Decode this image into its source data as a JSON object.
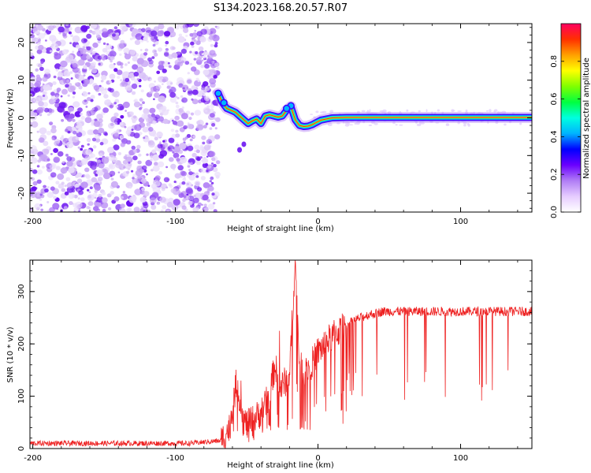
{
  "figure_title": "S134.2023.168.20.57.R07",
  "chart_data": [
    {
      "type": "heatmap",
      "xlabel": "Height of straight line (km)",
      "ylabel": "Frequency (Hz)",
      "xlim": [
        -202,
        150
      ],
      "ylim": [
        -25,
        25
      ],
      "x_ticks": [
        -200,
        -100,
        0,
        100
      ],
      "y_ticks": [
        -20,
        -10,
        0,
        10,
        20
      ],
      "colorbar": {
        "label": "Normalized spectral amplitude",
        "range": [
          0,
          1
        ],
        "ticks": [
          0.0,
          0.2,
          0.4,
          0.6,
          0.8
        ],
        "colors": [
          "#ffffff",
          "#e6ccff",
          "#b07cf5",
          "#6a00ff",
          "#0000ff",
          "#00b4ff",
          "#00ffe0",
          "#00ff40",
          "#80ff00",
          "#ffff00",
          "#ffa000",
          "#ff3000",
          "#ff0060"
        ]
      },
      "noise_region": {
        "x_from": -202,
        "x_to": -70,
        "freq_from": -25,
        "freq_to": 25
      },
      "ridge": [
        {
          "x": -70,
          "f": 6.5
        },
        {
          "x": -67,
          "f": 4
        },
        {
          "x": -64,
          "f": 2.5
        },
        {
          "x": -61,
          "f": 2
        },
        {
          "x": -58,
          "f": 1.5
        },
        {
          "x": -55,
          "f": 0.5
        },
        {
          "x": -52,
          "f": -0.5
        },
        {
          "x": -49,
          "f": -1.5
        },
        {
          "x": -46,
          "f": -0.8
        },
        {
          "x": -43,
          "f": -0.3
        },
        {
          "x": -40,
          "f": -1.5
        },
        {
          "x": -37,
          "f": 0.5
        },
        {
          "x": -34,
          "f": 0.8
        },
        {
          "x": -31,
          "f": 0.5
        },
        {
          "x": -28,
          "f": 0.2
        },
        {
          "x": -25,
          "f": 0.5
        },
        {
          "x": -22,
          "f": 2
        },
        {
          "x": -19,
          "f": 3
        },
        {
          "x": -16,
          "f": -0.5
        },
        {
          "x": -13,
          "f": -2
        },
        {
          "x": -10,
          "f": -2.3
        },
        {
          "x": -7,
          "f": -2.2
        },
        {
          "x": -4,
          "f": -1.8
        },
        {
          "x": -1,
          "f": -1.2
        },
        {
          "x": 2,
          "f": -0.6
        },
        {
          "x": 6,
          "f": -0.3
        },
        {
          "x": 10,
          "f": 0
        },
        {
          "x": 20,
          "f": 0.1
        },
        {
          "x": 40,
          "f": 0.1
        },
        {
          "x": 70,
          "f": 0.1
        },
        {
          "x": 100,
          "f": 0.1
        },
        {
          "x": 130,
          "f": 0.1
        },
        {
          "x": 150,
          "f": 0.1
        }
      ]
    },
    {
      "type": "line",
      "xlabel": "Height of straight line (km)",
      "ylabel": "SNR (10 * v/v)",
      "xlim": [
        -202,
        150
      ],
      "ylim": [
        0,
        360
      ],
      "x_ticks": [
        -200,
        -100,
        0,
        100
      ],
      "y_ticks": [
        0,
        100,
        200,
        300
      ],
      "color": "#ee2222",
      "series": [
        {
          "x": [
            -202,
            -180,
            -150,
            -120,
            -90,
            -68,
            -62,
            -57,
            -53,
            -50,
            -45,
            -40,
            -35,
            -30,
            -27,
            -25,
            -20,
            -16,
            -13,
            -10,
            -5,
            0,
            5,
            10,
            15,
            20,
            25,
            30,
            35,
            40,
            45,
            50,
            60,
            70,
            80,
            90,
            100,
            110,
            120,
            130,
            140,
            150
          ],
          "y": [
            10,
            10,
            10,
            10,
            10,
            15,
            40,
            130,
            60,
            45,
            55,
            70,
            95,
            160,
            115,
            120,
            140,
            360,
            160,
            145,
            160,
            185,
            200,
            215,
            225,
            235,
            245,
            250,
            255,
            258,
            262,
            262,
            262,
            262,
            262,
            262,
            262,
            262,
            262,
            262,
            262,
            262
          ]
        }
      ]
    }
  ]
}
